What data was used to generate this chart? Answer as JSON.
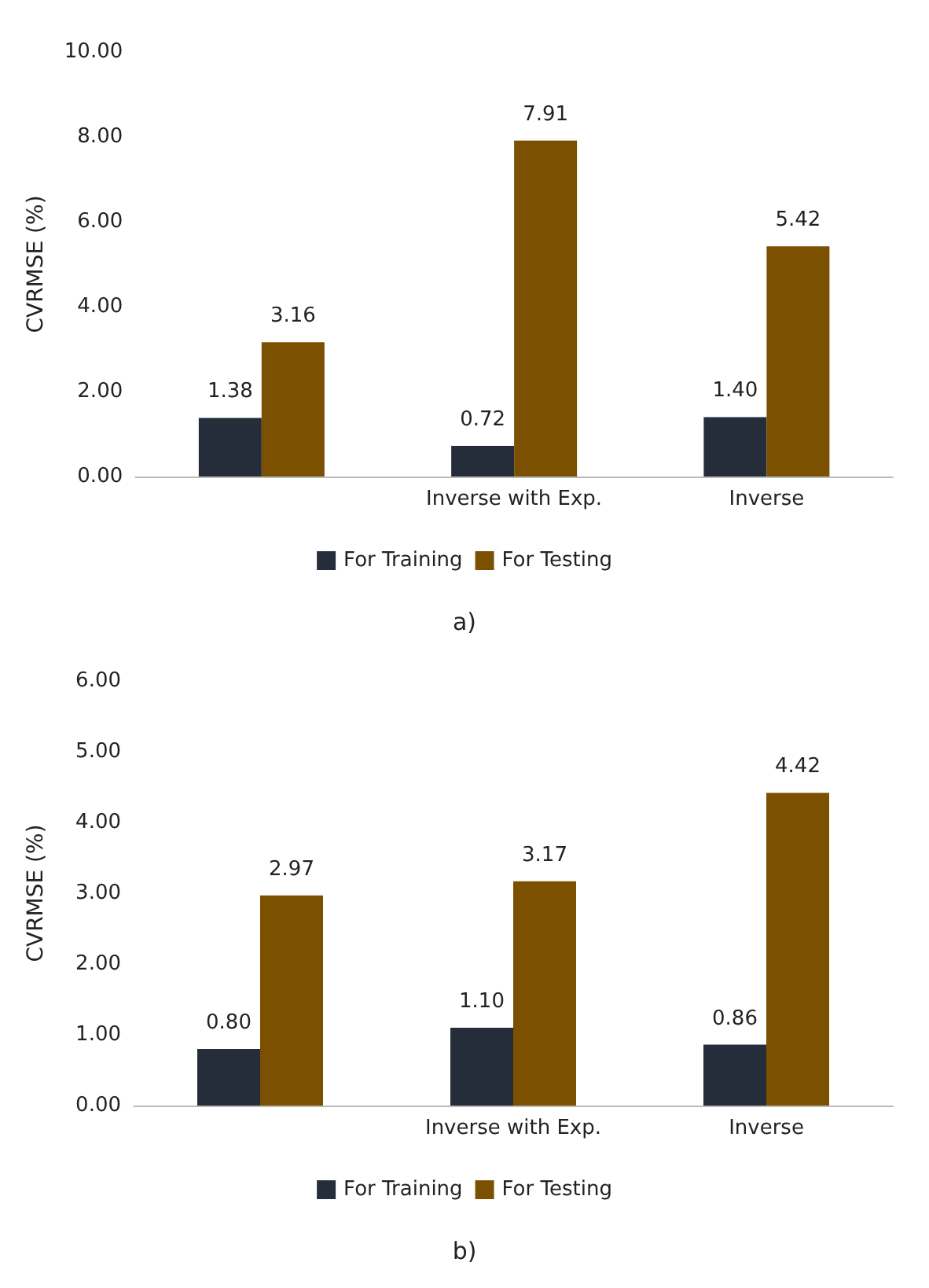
{
  "chart_data": [
    {
      "type": "bar",
      "ylabel": "CVRMSE (%)",
      "categories": [
        null,
        "Inverse with Exp.",
        "Inverse"
      ],
      "series": [
        {
          "name": "For Training",
          "color": "#252d3b",
          "values": [
            1.38,
            0.72,
            1.4
          ],
          "value_labels": [
            "1.38",
            "0.72",
            "1.40"
          ]
        },
        {
          "name": "For Testing",
          "color": "#7b5000",
          "values": [
            3.16,
            7.91,
            5.42
          ],
          "value_labels": [
            "3.16",
            "7.91",
            "5.42"
          ]
        }
      ],
      "ylim": [
        0,
        10
      ],
      "yticks": [
        {
          "value": 0,
          "label": "0.00"
        },
        {
          "value": 2,
          "label": "2.00"
        },
        {
          "value": 4,
          "label": "4.00"
        },
        {
          "value": 6,
          "label": "6.00"
        },
        {
          "value": 8,
          "label": "8.00"
        },
        {
          "value": 10,
          "label": "10.00"
        }
      ],
      "legend": "bottom",
      "annotations": [
        "a)"
      ]
    },
    {
      "type": "bar",
      "ylabel": "CVRMSE (%)",
      "categories": [
        null,
        "Inverse with Exp.",
        "Inverse"
      ],
      "series": [
        {
          "name": "For Training",
          "color": "#252d3b",
          "values": [
            0.8,
            1.1,
            0.86
          ],
          "value_labels": [
            "0.80",
            "1.10",
            "0.86"
          ]
        },
        {
          "name": "For Testing",
          "color": "#7b5000",
          "values": [
            2.97,
            3.17,
            4.42
          ],
          "value_labels": [
            "2.97",
            "3.17",
            "4.42"
          ]
        }
      ],
      "ylim": [
        0,
        6
      ],
      "yticks": [
        {
          "value": 0,
          "label": "0.00"
        },
        {
          "value": 1,
          "label": "1.00"
        },
        {
          "value": 2,
          "label": "2.00"
        },
        {
          "value": 3,
          "label": "3.00"
        },
        {
          "value": 4,
          "label": "4.00"
        },
        {
          "value": 5,
          "label": "5.00"
        },
        {
          "value": 6,
          "label": "6.00"
        }
      ],
      "legend": "bottom",
      "annotations": [
        "b)"
      ]
    }
  ]
}
